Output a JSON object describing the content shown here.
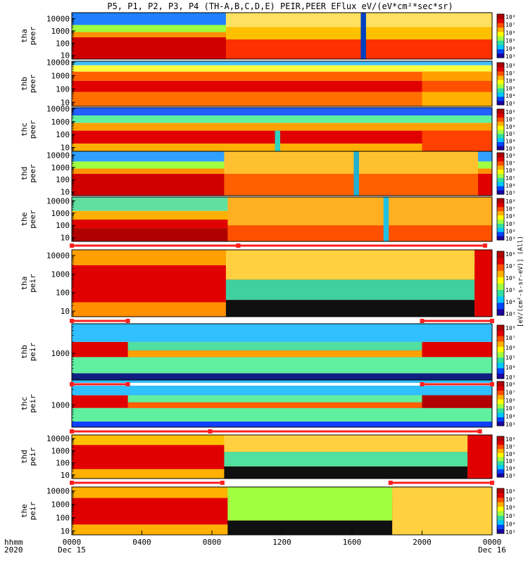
{
  "chart_data": {
    "type": "heatmap",
    "title": "P5, P1, P2, P3, P4 (TH-A,B,C,D,E) PEIR,PEER EFlux eV/(eV*cm²*sec*sr)",
    "x_ticks": [
      "0000",
      "0400",
      "0800",
      "1200",
      "1600",
      "2000",
      "0000"
    ],
    "x_tick_dates": [
      "Dec 15",
      "",
      "",
      "",
      "",
      "",
      "Dec 16"
    ],
    "x_axis_label": "hhmm",
    "x_axis_year": "2020",
    "xlim_hours": [
      0,
      24
    ],
    "colorbar_label": "[eV/(cm²-s-sr-eV)] (All)",
    "colorbar_ticks": [
      "10³",
      "10⁴",
      "10⁵",
      "10⁶",
      "10⁷",
      "10⁸"
    ],
    "colorbar_colors": [
      "#1c00a0",
      "#0044ff",
      "#00c8ff",
      "#30e0a0",
      "#a0ff40",
      "#ffff00",
      "#ffb000",
      "#ff5000",
      "#e00000",
      "#b00000"
    ],
    "panels": [
      {
        "sc": "tha",
        "species": "peer",
        "ylabel": "tha\npeer",
        "yticks": [
          "10000",
          "1000",
          "100",
          "10"
        ],
        "ylim": [
          5,
          30000
        ],
        "log": true,
        "bands": [
          [
            5,
            300,
            "#d00000"
          ],
          [
            300,
            800,
            "#ff9000"
          ],
          [
            800,
            3000,
            "#a0ff40"
          ],
          [
            3000,
            30000,
            "#2080ff"
          ]
        ],
        "events": [
          {
            "from": 8.8,
            "to": 24,
            "bands": [
              [
                5,
                200,
                "#ff3000"
              ],
              [
                200,
                2000,
                "#ffc000"
              ],
              [
                2000,
                30000,
                "#ffe060"
              ]
            ]
          },
          {
            "from": 16.5,
            "to": 16.8,
            "bands": [
              [
                5,
                30000,
                "#0040c0"
              ]
            ]
          }
        ]
      },
      {
        "sc": "thb",
        "species": "peer",
        "ylabel": "thb\npeer",
        "yticks": [
          "10000",
          "1000",
          "100",
          "10"
        ],
        "ylim": [
          5,
          12000
        ],
        "log": true,
        "bands": [
          [
            5,
            60,
            "#ff7000"
          ],
          [
            60,
            400,
            "#e00000"
          ],
          [
            400,
            2000,
            "#ff6000"
          ],
          [
            2000,
            6000,
            "#ffff40"
          ],
          [
            6000,
            12000,
            "#40c0ff"
          ]
        ],
        "events": [
          {
            "from": 20,
            "to": 24,
            "bands": [
              [
                5,
                60,
                "#ffb000"
              ],
              [
                60,
                400,
                "#ff5000"
              ],
              [
                400,
                2000,
                "#ffa000"
              ]
            ]
          }
        ]
      },
      {
        "sc": "thc",
        "species": "peer",
        "ylabel": "thc\npeer",
        "yticks": [
          "10000",
          "1000",
          "100",
          "10"
        ],
        "ylim": [
          5,
          12000
        ],
        "log": true,
        "bands": [
          [
            5,
            20,
            "#ffb000"
          ],
          [
            20,
            200,
            "#e00000"
          ],
          [
            200,
            800,
            "#ffa000"
          ],
          [
            800,
            3000,
            "#60f0a0"
          ],
          [
            3000,
            12000,
            "#2060ff"
          ]
        ],
        "events": [
          {
            "from": 11.6,
            "to": 11.9,
            "bands": [
              [
                5,
                200,
                "#30d0c0"
              ]
            ]
          },
          {
            "from": 20,
            "to": 24,
            "bands": [
              [
                5,
                200,
                "#ff4000"
              ]
            ]
          }
        ]
      },
      {
        "sc": "thd",
        "species": "peer",
        "ylabel": "thd\npeer",
        "yticks": [
          "10000",
          "1000",
          "100",
          "10"
        ],
        "ylim": [
          5,
          20000
        ],
        "log": true,
        "bands": [
          [
            5,
            300,
            "#d00000"
          ],
          [
            300,
            800,
            "#ff9000"
          ],
          [
            800,
            3000,
            "#a0ff40"
          ],
          [
            3000,
            20000,
            "#30a0ff"
          ]
        ],
        "events": [
          {
            "from": 8.7,
            "to": 23.2,
            "bands": [
              [
                5,
                300,
                "#ff6000"
              ],
              [
                300,
                20000,
                "#ffc030"
              ]
            ]
          },
          {
            "from": 16.1,
            "to": 16.4,
            "bands": [
              [
                5,
                20000,
                "#20b0d0"
              ]
            ]
          },
          {
            "from": 23.2,
            "to": 24,
            "bands": [
              [
                5,
                300,
                "#e00000"
              ]
            ]
          }
        ]
      },
      {
        "sc": "the",
        "species": "peer",
        "ylabel": "the\npeer",
        "yticks": [
          "10000",
          "1000",
          "100",
          "10"
        ],
        "ylim": [
          5,
          20000
        ],
        "log": true,
        "bands": [
          [
            5,
            60,
            "#b00000"
          ],
          [
            60,
            300,
            "#e00000"
          ],
          [
            300,
            1500,
            "#ffb000"
          ],
          [
            1500,
            20000,
            "#60e0a0"
          ]
        ],
        "events": [
          {
            "from": 8.9,
            "to": 24,
            "bands": [
              [
                5,
                100,
                "#ff5000"
              ],
              [
                100,
                20000,
                "#ffb020"
              ]
            ]
          },
          {
            "from": 17.8,
            "to": 18.1,
            "bands": [
              [
                5,
                20000,
                "#20c0e0"
              ]
            ]
          }
        ]
      },
      {
        "sc": "tha",
        "species": "peir",
        "ylabel": "tha\npeir",
        "yticks": [
          "10000",
          "1000",
          "100",
          "10"
        ],
        "ylim": [
          5,
          20000
        ],
        "log": true,
        "bands": [
          [
            5,
            30,
            "#ff9000"
          ],
          [
            30,
            3000,
            "#e00000"
          ],
          [
            3000,
            20000,
            "#ffa000"
          ]
        ],
        "events": [
          {
            "from": 8.8,
            "to": 23.0,
            "bands": [
              [
                5,
                40,
                "#101010"
              ],
              [
                40,
                500,
                "#40d0a0"
              ],
              [
                500,
                20000,
                "#ffd040"
              ]
            ]
          },
          {
            "from": 23.0,
            "to": 24,
            "bands": [
              [
                5,
                20000,
                "#e00000"
              ]
            ]
          }
        ]
      },
      {
        "sc": "thb",
        "species": "peir",
        "ylabel": "thb\npeir",
        "yticks": [
          "1000"
        ],
        "ylim": [
          200,
          6000
        ],
        "log": true,
        "bands": [
          [
            200,
            300,
            "#102080"
          ],
          [
            300,
            800,
            "#60f0a0"
          ],
          [
            800,
            2000,
            "#e00000"
          ],
          [
            2000,
            6000,
            "#30c0ff"
          ]
        ],
        "events": [
          {
            "from": 3.2,
            "to": 20,
            "bands": [
              [
                800,
                1200,
                "#ffa000"
              ],
              [
                1200,
                2000,
                "#50e0a0"
              ]
            ]
          }
        ]
      },
      {
        "sc": "thc",
        "species": "peir",
        "ylabel": "thc\npeir",
        "yticks": [
          "1000"
        ],
        "ylim": [
          200,
          6000
        ],
        "log": true,
        "bands": [
          [
            200,
            300,
            "#1040ff"
          ],
          [
            300,
            800,
            "#60f0a0"
          ],
          [
            800,
            2000,
            "#e00000"
          ],
          [
            2000,
            6000,
            "#30c0ff"
          ]
        ],
        "events": [
          {
            "from": 3.2,
            "to": 20,
            "bands": [
              [
                800,
                1200,
                "#ff6000"
              ],
              [
                1200,
                2000,
                "#60f0a0"
              ]
            ]
          },
          {
            "from": 20,
            "to": 24,
            "bands": [
              [
                800,
                2000,
                "#b00000"
              ]
            ]
          }
        ]
      },
      {
        "sc": "thd",
        "species": "peir",
        "ylabel": "thd\npeir",
        "yticks": [
          "10000",
          "1000",
          "100",
          "10"
        ],
        "ylim": [
          5,
          20000
        ],
        "log": true,
        "bands": [
          [
            5,
            30,
            "#ffb000"
          ],
          [
            30,
            3000,
            "#e00000"
          ],
          [
            3000,
            20000,
            "#ffc000"
          ]
        ],
        "events": [
          {
            "from": 8.7,
            "to": 22.6,
            "bands": [
              [
                5,
                50,
                "#101010"
              ],
              [
                50,
                800,
                "#50e0a0"
              ],
              [
                800,
                20000,
                "#ffd040"
              ]
            ]
          },
          {
            "from": 22.6,
            "to": 24,
            "bands": [
              [
                5,
                20000,
                "#e00000"
              ]
            ]
          }
        ]
      },
      {
        "sc": "the",
        "species": "peir",
        "ylabel": "the\npeir",
        "yticks": [
          "10000",
          "1000",
          "100",
          "10"
        ],
        "ylim": [
          5,
          20000
        ],
        "log": true,
        "bands": [
          [
            5,
            30,
            "#ffb000"
          ],
          [
            30,
            3000,
            "#e00000"
          ],
          [
            3000,
            20000,
            "#ffb000"
          ]
        ],
        "events": [
          {
            "from": 8.9,
            "to": 18.3,
            "bands": [
              [
                5,
                60,
                "#101010"
              ],
              [
                60,
                20000,
                "#a0ff40"
              ]
            ]
          },
          {
            "from": 18.3,
            "to": 24,
            "bands": [
              [
                5,
                20000,
                "#ffd040"
              ]
            ]
          }
        ]
      }
    ],
    "mode_bars": [
      {
        "after_panel": 4,
        "segments": [
          [
            0,
            9.5
          ],
          [
            9.5,
            23.6
          ]
        ]
      },
      {
        "after_panel": 5,
        "segments": [
          [
            0,
            3.2
          ],
          [
            20,
            24
          ]
        ]
      },
      {
        "after_panel": 6,
        "segments": [
          [
            0,
            3.2
          ],
          [
            20,
            24
          ]
        ]
      },
      {
        "after_panel": 7,
        "segments": [
          [
            0,
            7.9
          ],
          [
            7.9,
            23.3
          ]
        ]
      },
      {
        "after_panel": 8,
        "segments": [
          [
            0,
            8.6
          ],
          [
            18.2,
            24
          ]
        ]
      }
    ]
  }
}
